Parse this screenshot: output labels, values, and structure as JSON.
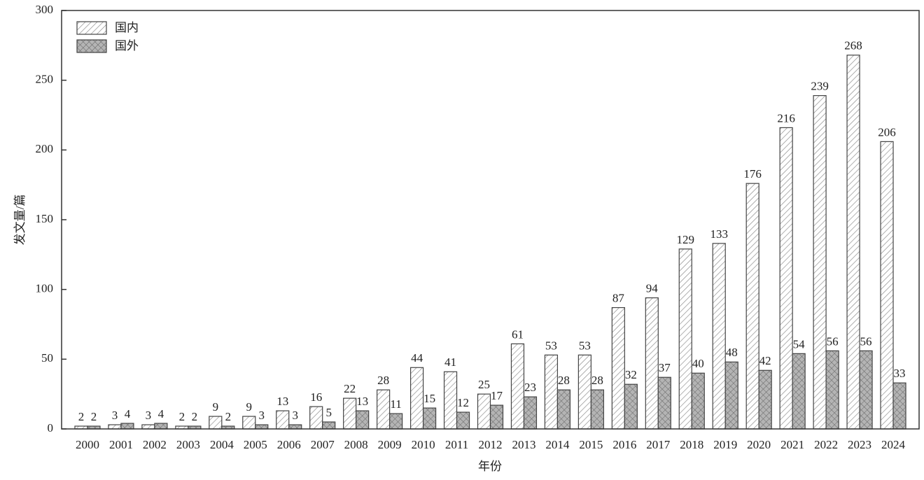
{
  "chart_data": {
    "type": "bar",
    "xlabel": "年份",
    "ylabel": "发文量/篇",
    "categories": [
      "2000",
      "2001",
      "2002",
      "2003",
      "2004",
      "2005",
      "2006",
      "2007",
      "2008",
      "2009",
      "2010",
      "2011",
      "2012",
      "2013",
      "2014",
      "2015",
      "2016",
      "2017",
      "2018",
      "2019",
      "2020",
      "2021",
      "2022",
      "2023",
      "2024"
    ],
    "series": [
      {
        "name": "国内",
        "color": "#ffffff",
        "hatch": "diagonal",
        "values": [
          2,
          3,
          3,
          2,
          9,
          9,
          13,
          16,
          22,
          28,
          44,
          41,
          25,
          61,
          53,
          53,
          87,
          94,
          129,
          133,
          176,
          216,
          239,
          268,
          206
        ]
      },
      {
        "name": "国外",
        "color": "#b4b4b4",
        "hatch": "cross",
        "values": [
          2,
          4,
          4,
          2,
          2,
          3,
          3,
          5,
          13,
          11,
          15,
          12,
          17,
          23,
          28,
          28,
          32,
          37,
          40,
          48,
          42,
          54,
          56,
          56,
          33
        ]
      }
    ],
    "ylim": [
      0,
      300
    ],
    "yticks": [
      0,
      50,
      100,
      150,
      200,
      250,
      300
    ],
    "legend": "upper left"
  }
}
